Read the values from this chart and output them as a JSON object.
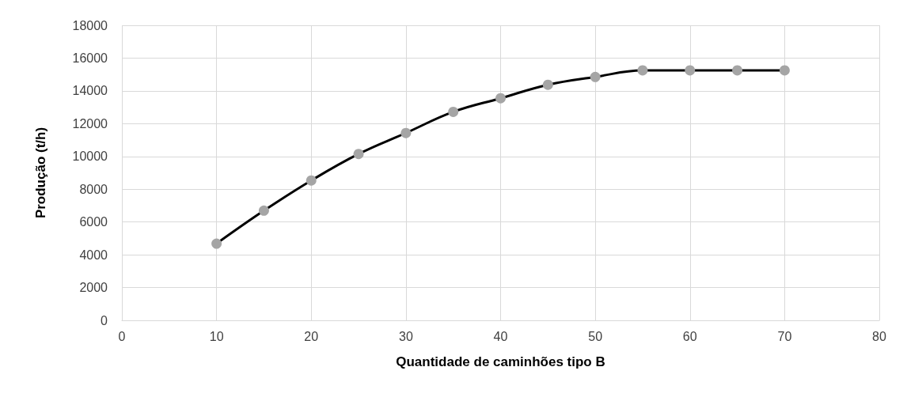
{
  "chart_data": {
    "type": "line",
    "xlabel": "Quantidade de caminhões tipo B",
    "ylabel": "Produção (t/h)",
    "x": [
      10,
      15,
      20,
      25,
      30,
      35,
      40,
      45,
      50,
      55,
      60,
      65,
      70
    ],
    "series": [
      {
        "color": "#000000",
        "colors": [
          "#a5a5a5",
          "#a5a5a5",
          "#a5a5a5",
          "#a5a5a5",
          "#a5a5a5",
          "#a5a5a5",
          "#a5a5a5",
          "#a5a5a5",
          "#a5a5a5",
          "#a5a5a5",
          "#a5a5a5",
          "#a5a5a5",
          "#a5a5a5"
        ],
        "values": [
          4680,
          6690,
          8530,
          10150,
          11430,
          12720,
          13550,
          14370,
          14850,
          15250,
          15250,
          15250,
          15250
        ]
      }
    ],
    "xlim": [
      0,
      80
    ],
    "xticks": [
      0,
      10,
      20,
      30,
      40,
      50,
      60,
      70,
      80
    ],
    "ylim": [
      0,
      18000
    ],
    "yticks": [
      0,
      2000,
      4000,
      6000,
      8000,
      10000,
      12000,
      14000,
      16000,
      18000
    ],
    "grid": true,
    "marker": "circle",
    "line_style": "solid"
  }
}
